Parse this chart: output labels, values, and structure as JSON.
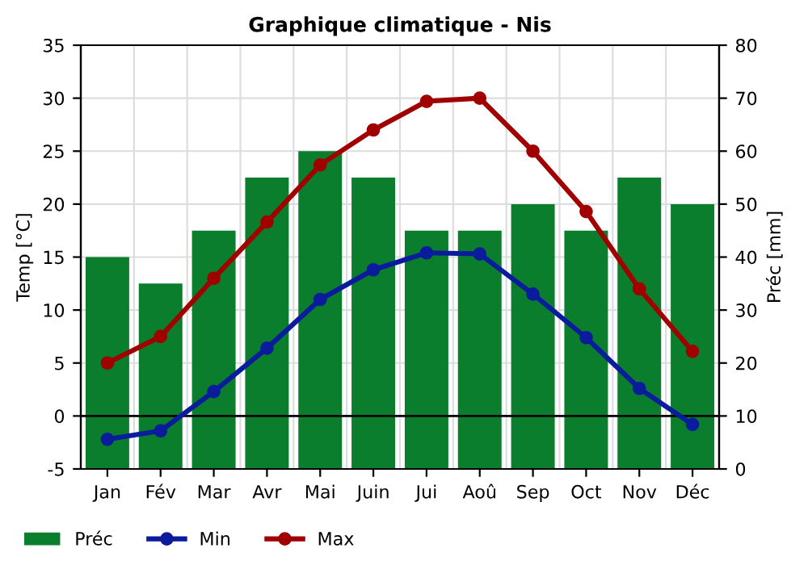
{
  "chart_data": {
    "type": "bar",
    "title": "Graphique climatique - Nis",
    "ylabel": "Temp [°C]",
    "y2label": "Préc [mm]",
    "categories": [
      "Jan",
      "Fév",
      "Mar",
      "Avr",
      "Mai",
      "Juin",
      "Jui",
      "Aoû",
      "Sep",
      "Oct",
      "Nov",
      "Déc"
    ],
    "series": [
      {
        "name": "Préc",
        "axis": "y2",
        "color": "#0a7e2d",
        "values": [
          40,
          35,
          45,
          55,
          60,
          55,
          45,
          45,
          50,
          45,
          55,
          50
        ]
      },
      {
        "name": "Min",
        "type": "line",
        "color": "#0a1c9c",
        "values": [
          -2.2,
          -1.4,
          2.3,
          6.4,
          11,
          13.8,
          15.4,
          15.3,
          11.5,
          7.4,
          2.6,
          -0.8
        ]
      },
      {
        "name": "Max",
        "type": "line",
        "color": "#a00000",
        "values": [
          5,
          7.5,
          13,
          18.3,
          23.7,
          27,
          29.7,
          30,
          25,
          19.3,
          12,
          6.1
        ]
      }
    ],
    "ylim": [
      -5,
      35
    ],
    "yticks": [
      -5,
      0,
      5,
      10,
      15,
      20,
      25,
      30,
      35
    ],
    "y2lim": [
      0,
      80
    ],
    "y2ticks": [
      0,
      10,
      20,
      30,
      40,
      50,
      60,
      70,
      80
    ],
    "ref_lines": [
      {
        "axis": "y",
        "value": 0,
        "color": "#000000"
      }
    ],
    "grid": true,
    "legend": "bottom",
    "marker": "circle",
    "line_style": "solid"
  }
}
